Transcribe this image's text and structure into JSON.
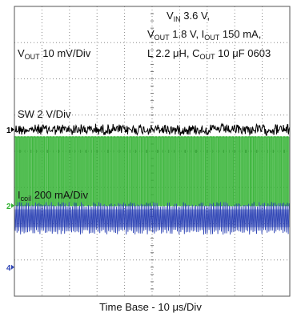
{
  "chart_data": {
    "type": "line",
    "title": "",
    "grid": true,
    "divisions": {
      "x": 10,
      "y": 8
    },
    "conditions": {
      "vin": {
        "main": "V",
        "sub": "IN",
        "rest": " 3.6 V,"
      },
      "line2": {
        "p1": "V",
        "s1": "OUT",
        "p2": " 1.8 V, I",
        "s2": "OUT",
        "p3": " 150 mA,"
      },
      "line3": {
        "p1": "L  2.2 μH, C",
        "s1": "OUT",
        "p2": " 10 μF 0603"
      }
    },
    "series": [
      {
        "marker": "1",
        "scale": {
          "main": "V",
          "sub": "OUT",
          "rest": " 10 mV/Div"
        },
        "color": "#000000",
        "ref_div": 3.4,
        "kind": "noise",
        "peak_to_peak_div": 0.35
      },
      {
        "marker": "2",
        "scale": {
          "main": "SW 2 V/Div",
          "sub": "",
          "rest": ""
        },
        "color": "#33b233",
        "ref_div": 5.5,
        "kind": "switch",
        "high_div": 1.9,
        "frequency_per_div": 8.6
      },
      {
        "marker": "4",
        "scale": {
          "main": "I",
          "sub": "coil",
          "rest": " 200 mA/Div"
        },
        "color": "#2f45b5",
        "ref_div": 7.2,
        "kind": "ripple",
        "mean_div": 1.35,
        "peak_to_peak_div": 0.9
      }
    ],
    "xlabel": "Time Base - 10 μs/Div"
  }
}
